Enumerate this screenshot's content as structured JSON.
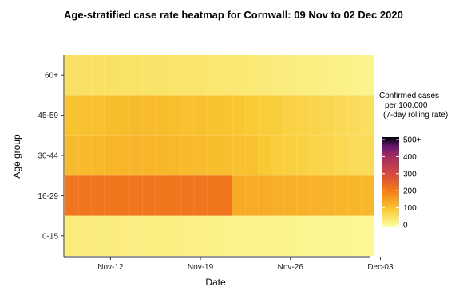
{
  "chart_data": {
    "type": "heatmap",
    "title": "Age-stratified case rate heatmap for Cornwall: 09 Nov to 02 Dec 2020",
    "xlabel": "Date",
    "ylabel": "Age group",
    "x_ticks": [
      "Nov-12",
      "Nov-19",
      "Nov-26",
      "Dec-03"
    ],
    "x": [
      "2020-11-09",
      "2020-11-10",
      "2020-11-11",
      "2020-11-12",
      "2020-11-13",
      "2020-11-14",
      "2020-11-15",
      "2020-11-16",
      "2020-11-17",
      "2020-11-18",
      "2020-11-19",
      "2020-11-20",
      "2020-11-21",
      "2020-11-22",
      "2020-11-23",
      "2020-11-24",
      "2020-11-25",
      "2020-11-26",
      "2020-11-27",
      "2020-11-28",
      "2020-11-29",
      "2020-11-30",
      "2020-12-01",
      "2020-12-02"
    ],
    "y": [
      "0-15",
      "16-29",
      "30-44",
      "45-59",
      "60+"
    ],
    "values": [
      [
        35,
        35,
        34,
        34,
        33,
        32,
        31,
        30,
        29,
        28,
        27,
        26,
        25,
        24,
        23,
        22,
        21,
        20,
        19,
        18,
        17,
        16,
        15,
        14
      ],
      [
        215,
        215,
        215,
        215,
        215,
        215,
        215,
        215,
        215,
        215,
        215,
        215,
        215,
        140,
        140,
        138,
        136,
        134,
        132,
        130,
        128,
        126,
        124,
        122
      ],
      [
        118,
        120,
        122,
        124,
        126,
        128,
        126,
        124,
        122,
        120,
        118,
        116,
        114,
        112,
        110,
        100,
        92,
        88,
        84,
        80,
        76,
        72,
        68,
        64
      ],
      [
        108,
        110,
        112,
        114,
        116,
        118,
        118,
        116,
        114,
        112,
        110,
        108,
        106,
        102,
        98,
        94,
        90,
        86,
        82,
        78,
        74,
        70,
        66,
        60
      ],
      [
        58,
        58,
        56,
        56,
        54,
        54,
        52,
        52,
        50,
        50,
        48,
        46,
        44,
        42,
        40,
        38,
        36,
        34,
        32,
        30,
        28,
        26,
        24,
        22
      ]
    ],
    "legend": {
      "title": [
        "Confirmed cases",
        "per 100,000",
        "(7-day rolling rate)"
      ],
      "ticks": [
        "500+",
        "400",
        "300",
        "200",
        "100",
        "0"
      ],
      "range": [
        0,
        500
      ]
    }
  }
}
